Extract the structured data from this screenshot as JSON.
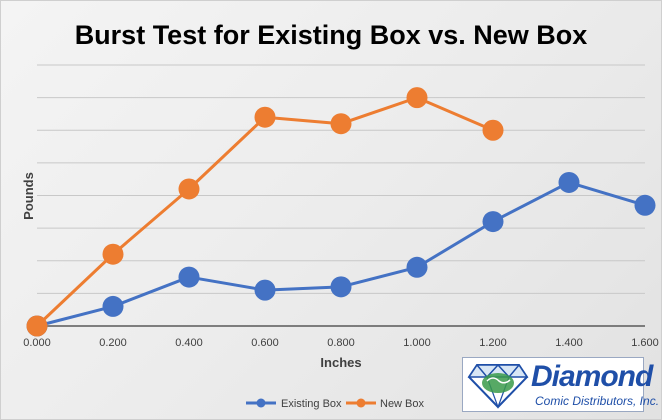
{
  "chart_data": {
    "type": "line",
    "title": "Burst Test for Existing Box vs. New Box",
    "xlabel": "Inches",
    "ylabel": "Pounds",
    "x_ticks": [
      "0.000",
      "0.200",
      "0.400",
      "0.600",
      "0.800",
      "1.000",
      "1.200",
      "1.400",
      "1.600"
    ],
    "xlim": [
      0,
      1.6
    ],
    "ylim": [
      0,
      8
    ],
    "y_gridlines": 8,
    "y_tick_labels_shown": false,
    "grid": true,
    "legend_position": "bottom",
    "series": [
      {
        "name": "Existing Box",
        "color": "#4472c4",
        "x": [
          0.0,
          0.2,
          0.4,
          0.6,
          0.8,
          1.0,
          1.2,
          1.4,
          1.6
        ],
        "y": [
          0.0,
          0.6,
          1.5,
          1.1,
          1.2,
          1.8,
          3.2,
          4.4,
          3.7
        ]
      },
      {
        "name": "New Box",
        "color": "#ed7d31",
        "x": [
          0.0,
          0.2,
          0.4,
          0.6,
          0.8,
          1.0,
          1.2
        ],
        "y": [
          0.0,
          2.2,
          4.2,
          6.4,
          6.2,
          7.0,
          6.0
        ]
      }
    ]
  },
  "logo": {
    "name": "Diamond",
    "subtitle": "Comic Distributors, Inc."
  }
}
